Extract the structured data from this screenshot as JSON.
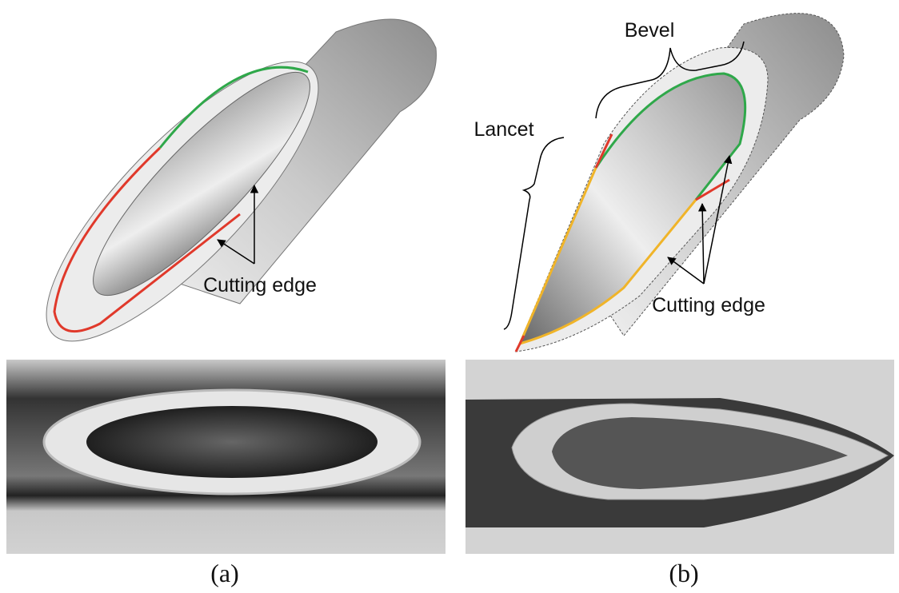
{
  "panels": [
    {
      "label": "(a)",
      "annotations": {
        "cutting_edge": "Cutting edge"
      }
    },
    {
      "label": "(b)",
      "annotations": {
        "bevel": "Bevel",
        "lancet": "Lancet",
        "cutting_edge": "Cutting edge"
      }
    }
  ]
}
